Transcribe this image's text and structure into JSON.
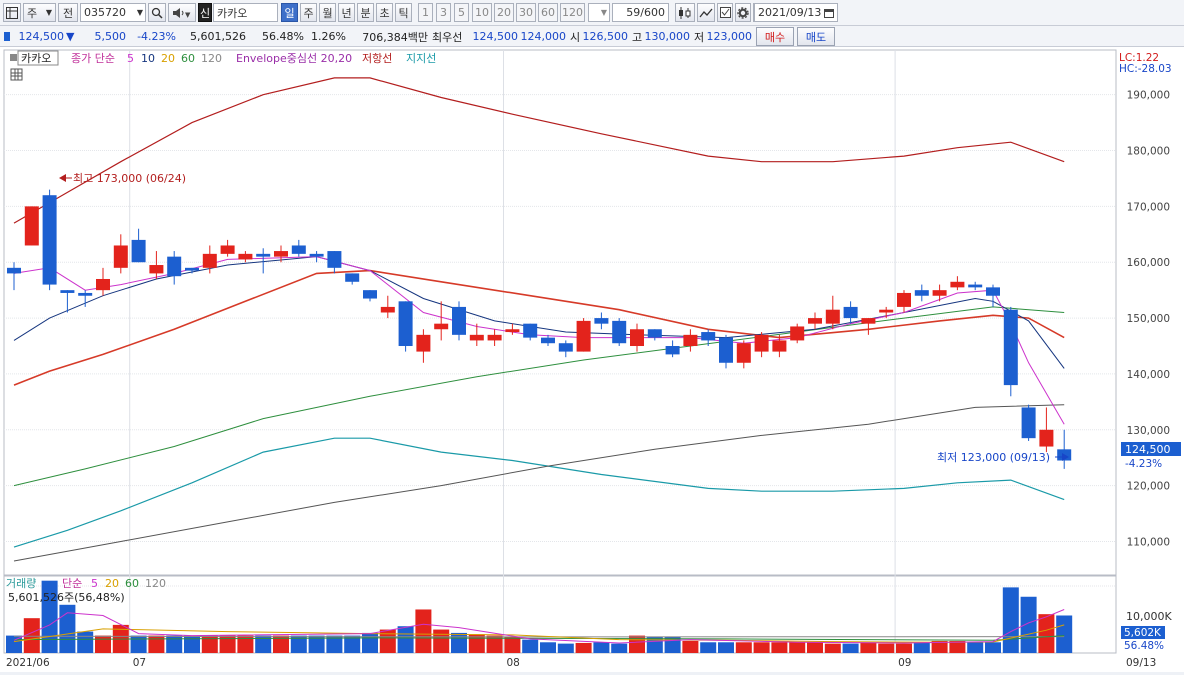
{
  "toolbar": {
    "market_label": "주",
    "jeon_label": "전",
    "code": "035720",
    "new_label": "신",
    "stock_name": "카카오",
    "periods": [
      "일",
      "주",
      "월",
      "년",
      "분",
      "초",
      "틱"
    ],
    "period_selected": "일",
    "numbers": [
      "1",
      "3",
      "5",
      "10",
      "20",
      "30",
      "60",
      "120"
    ],
    "count": "59/600",
    "date": "2021/09/13"
  },
  "quote": {
    "price": "124,500",
    "change_arrow": "▼",
    "change": "5,500",
    "change_pct": "-4.23%",
    "volume": "5,601,526",
    "volume_ratio": "56.48%",
    "turnover_ratio": "1.26%",
    "amount": "706,384백만",
    "best_label": "최우선",
    "best_ask": "124,500",
    "best_bid": "124,000",
    "open_label": "시",
    "open": "126,500",
    "high_label": "고",
    "high": "130,000",
    "low_label": "저",
    "low": "123,000",
    "buy_label": "매수",
    "sell_label": "매도"
  },
  "legend": {
    "stock_tag": "카카오",
    "ma_label": "종가 단순",
    "ma_periods": [
      "5",
      "10",
      "20",
      "60",
      "120"
    ],
    "envelope": "Envelope중심선 20,20",
    "resistance": "저항선",
    "support": "지지선",
    "lc": "LC:1.22",
    "hc": "HC:-28.03"
  },
  "annotations": {
    "max_label": "최고 173,000 (06/24)",
    "min_label": "최저 123,000 (09/13)",
    "last_price": "124,500",
    "last_pct": "-4.23%"
  },
  "volume_panel": {
    "label": "거래량",
    "ma_label": "단순",
    "ma_periods": [
      "5",
      "20",
      "60",
      "120"
    ],
    "current": "5,601,526주(56,48%)",
    "axis_label": "10,000K",
    "last_label": "5,602K",
    "last_pct": "56.48%"
  },
  "colors": {
    "up": "#e3231c",
    "down": "#1c5fd0",
    "ma5": "#cc33cc",
    "ma10": "#15357f",
    "ma20": "#d63a28",
    "ma60": "#2e8f3e",
    "ma120": "#555555",
    "env_upper": "#b31e1e",
    "env_lower": "#1a9aa8"
  },
  "chart_data": {
    "type": "candlestick",
    "y_ticks": [
      110000,
      120000,
      130000,
      140000,
      150000,
      160000,
      170000,
      180000,
      190000
    ],
    "ylim": [
      104000,
      198000
    ],
    "x_labels": [
      "2021/06",
      "07",
      "08",
      "09",
      "09/13"
    ],
    "candles": [
      {
        "o": 159000,
        "h": 160000,
        "l": 155000,
        "c": 158000
      },
      {
        "o": 163000,
        "h": 170000,
        "l": 163000,
        "c": 170000
      },
      {
        "o": 172000,
        "h": 173000,
        "l": 155000,
        "c": 156000
      },
      {
        "o": 155000,
        "h": 155000,
        "l": 151000,
        "c": 154500
      },
      {
        "o": 154500,
        "h": 155000,
        "l": 152000,
        "c": 154000
      },
      {
        "o": 155000,
        "h": 159000,
        "l": 154000,
        "c": 157000
      },
      {
        "o": 159000,
        "h": 165000,
        "l": 158000,
        "c": 163000
      },
      {
        "o": 164000,
        "h": 166000,
        "l": 160000,
        "c": 160000
      },
      {
        "o": 158000,
        "h": 162000,
        "l": 157000,
        "c": 159500
      },
      {
        "o": 161000,
        "h": 162000,
        "l": 156000,
        "c": 157500
      },
      {
        "o": 159000,
        "h": 159000,
        "l": 158000,
        "c": 158500
      },
      {
        "o": 159000,
        "h": 163000,
        "l": 158000,
        "c": 161500
      },
      {
        "o": 161500,
        "h": 164000,
        "l": 161000,
        "c": 163000
      },
      {
        "o": 160500,
        "h": 162000,
        "l": 160000,
        "c": 161500
      },
      {
        "o": 161500,
        "h": 162500,
        "l": 158000,
        "c": 161000
      },
      {
        "o": 161000,
        "h": 163000,
        "l": 160000,
        "c": 162000
      },
      {
        "o": 163000,
        "h": 164000,
        "l": 161000,
        "c": 161500
      },
      {
        "o": 161500,
        "h": 162000,
        "l": 160000,
        "c": 161000
      },
      {
        "o": 162000,
        "h": 162000,
        "l": 158000,
        "c": 159000
      },
      {
        "o": 158000,
        "h": 158000,
        "l": 156000,
        "c": 156500
      },
      {
        "o": 155000,
        "h": 155000,
        "l": 153000,
        "c": 153500
      },
      {
        "o": 151000,
        "h": 154000,
        "l": 150000,
        "c": 152000
      },
      {
        "o": 153000,
        "h": 153000,
        "l": 144000,
        "c": 145000
      },
      {
        "o": 144000,
        "h": 148000,
        "l": 142000,
        "c": 147000
      },
      {
        "o": 148000,
        "h": 153000,
        "l": 146000,
        "c": 149000
      },
      {
        "o": 152000,
        "h": 153000,
        "l": 146000,
        "c": 147000
      },
      {
        "o": 146000,
        "h": 149000,
        "l": 145000,
        "c": 147000
      },
      {
        "o": 146000,
        "h": 148000,
        "l": 145000,
        "c": 147000
      },
      {
        "o": 147500,
        "h": 149000,
        "l": 147000,
        "c": 148000
      },
      {
        "o": 149000,
        "h": 149000,
        "l": 146000,
        "c": 146500
      },
      {
        "o": 146500,
        "h": 147000,
        "l": 145000,
        "c": 145500
      },
      {
        "o": 145500,
        "h": 146000,
        "l": 143000,
        "c": 144000
      },
      {
        "o": 144000,
        "h": 150000,
        "l": 144000,
        "c": 149500
      },
      {
        "o": 150000,
        "h": 151000,
        "l": 148000,
        "c": 149000
      },
      {
        "o": 149500,
        "h": 150000,
        "l": 145000,
        "c": 145500
      },
      {
        "o": 145000,
        "h": 149000,
        "l": 144000,
        "c": 148000
      },
      {
        "o": 148000,
        "h": 148000,
        "l": 146000,
        "c": 146500
      },
      {
        "o": 145000,
        "h": 146000,
        "l": 143000,
        "c": 143500
      },
      {
        "o": 145000,
        "h": 148000,
        "l": 144000,
        "c": 147000
      },
      {
        "o": 147500,
        "h": 148000,
        "l": 145000,
        "c": 146000
      },
      {
        "o": 146500,
        "h": 147000,
        "l": 141000,
        "c": 142000
      },
      {
        "o": 142000,
        "h": 146000,
        "l": 141000,
        "c": 145500
      },
      {
        "o": 144000,
        "h": 147500,
        "l": 143000,
        "c": 147000
      },
      {
        "o": 144000,
        "h": 147000,
        "l": 143000,
        "c": 146000
      },
      {
        "o": 146000,
        "h": 149000,
        "l": 145500,
        "c": 148500
      },
      {
        "o": 149000,
        "h": 151000,
        "l": 148000,
        "c": 150000
      },
      {
        "o": 149000,
        "h": 154000,
        "l": 148000,
        "c": 151500
      },
      {
        "o": 152000,
        "h": 153000,
        "l": 149000,
        "c": 150000
      },
      {
        "o": 149000,
        "h": 150000,
        "l": 147000,
        "c": 150000
      },
      {
        "o": 151000,
        "h": 152000,
        "l": 150000,
        "c": 151500
      },
      {
        "o": 152000,
        "h": 155000,
        "l": 151000,
        "c": 154500
      },
      {
        "o": 155000,
        "h": 156000,
        "l": 153000,
        "c": 154000
      },
      {
        "o": 154000,
        "h": 156000,
        "l": 153000,
        "c": 155000
      },
      {
        "o": 155500,
        "h": 157500,
        "l": 155000,
        "c": 156500
      },
      {
        "o": 156000,
        "h": 156500,
        "l": 155000,
        "c": 155500
      },
      {
        "o": 155500,
        "h": 156000,
        "l": 152000,
        "c": 154000
      },
      {
        "o": 151500,
        "h": 152000,
        "l": 136000,
        "c": 138000
      },
      {
        "o": 134000,
        "h": 134500,
        "l": 128000,
        "c": 128500
      },
      {
        "o": 127000,
        "h": 134000,
        "l": 126000,
        "c": 130000
      },
      {
        "o": 126500,
        "h": 130000,
        "l": 123000,
        "c": 124500
      }
    ],
    "ma5": [
      [
        0,
        158000
      ],
      [
        2,
        159000
      ],
      [
        4,
        155000
      ],
      [
        6,
        156000
      ],
      [
        9,
        158000
      ],
      [
        12,
        160500
      ],
      [
        17,
        161000
      ],
      [
        20,
        158500
      ],
      [
        23,
        151000
      ],
      [
        26,
        148500
      ],
      [
        29,
        147000
      ],
      [
        32,
        146500
      ],
      [
        35,
        146500
      ],
      [
        38,
        146500
      ],
      [
        41,
        145500
      ],
      [
        44,
        146500
      ],
      [
        47,
        149000
      ],
      [
        50,
        151000
      ],
      [
        53,
        154500
      ],
      [
        55,
        155000
      ],
      [
        56,
        149000
      ],
      [
        57,
        142000
      ],
      [
        58,
        136500
      ],
      [
        59,
        131000
      ]
    ],
    "ma10": [
      [
        0,
        146000
      ],
      [
        2,
        150000
      ],
      [
        5,
        154000
      ],
      [
        8,
        157000
      ],
      [
        12,
        159500
      ],
      [
        17,
        161000
      ],
      [
        20,
        158500
      ],
      [
        23,
        153500
      ],
      [
        27,
        149500
      ],
      [
        31,
        147500
      ],
      [
        35,
        147000
      ],
      [
        40,
        146500
      ],
      [
        45,
        148000
      ],
      [
        50,
        151000
      ],
      [
        54,
        153500
      ],
      [
        55,
        153000
      ],
      [
        57,
        149500
      ],
      [
        59,
        141000
      ]
    ],
    "ma20": [
      [
        0,
        138000
      ],
      [
        2,
        140500
      ],
      [
        5,
        143500
      ],
      [
        9,
        148000
      ],
      [
        13,
        153000
      ],
      [
        17,
        158000
      ],
      [
        20,
        158500
      ],
      [
        24,
        156500
      ],
      [
        29,
        154000
      ],
      [
        34,
        151500
      ],
      [
        39,
        148000
      ],
      [
        43,
        146500
      ],
      [
        48,
        148000
      ],
      [
        52,
        149500
      ],
      [
        55,
        150500
      ],
      [
        57,
        150000
      ],
      [
        59,
        146500
      ]
    ],
    "ma60": [
      [
        0,
        120000
      ],
      [
        4,
        123000
      ],
      [
        9,
        127000
      ],
      [
        14,
        132000
      ],
      [
        20,
        136000
      ],
      [
        26,
        139500
      ],
      [
        32,
        142500
      ],
      [
        38,
        145000
      ],
      [
        44,
        147500
      ],
      [
        50,
        150000
      ],
      [
        55,
        152000
      ],
      [
        59,
        151000
      ]
    ],
    "ma120": [
      [
        0,
        106500
      ],
      [
        6,
        110000
      ],
      [
        12,
        113500
      ],
      [
        18,
        117000
      ],
      [
        24,
        120000
      ],
      [
        30,
        123500
      ],
      [
        36,
        126500
      ],
      [
        42,
        129000
      ],
      [
        48,
        131000
      ],
      [
        54,
        134000
      ],
      [
        59,
        134500
      ]
    ],
    "env_upper": [
      [
        0,
        167000
      ],
      [
        3,
        172500
      ],
      [
        6,
        178000
      ],
      [
        10,
        185000
      ],
      [
        14,
        190000
      ],
      [
        18,
        193000
      ],
      [
        20,
        193000
      ],
      [
        24,
        189500
      ],
      [
        28,
        186500
      ],
      [
        33,
        183000
      ],
      [
        39,
        179000
      ],
      [
        42,
        178000
      ],
      [
        46,
        178000
      ],
      [
        50,
        179000
      ],
      [
        53,
        180500
      ],
      [
        56,
        181500
      ],
      [
        59,
        178000
      ]
    ],
    "env_lower": [
      [
        0,
        109000
      ],
      [
        3,
        112000
      ],
      [
        6,
        115500
      ],
      [
        10,
        120500
      ],
      [
        14,
        126000
      ],
      [
        18,
        128500
      ],
      [
        20,
        128500
      ],
      [
        24,
        126000
      ],
      [
        28,
        124500
      ],
      [
        33,
        122000
      ],
      [
        39,
        119500
      ],
      [
        42,
        119000
      ],
      [
        46,
        119000
      ],
      [
        50,
        119500
      ],
      [
        53,
        120500
      ],
      [
        56,
        121000
      ],
      [
        59,
        117500
      ]
    ],
    "volume": [
      2600,
      5200,
      10800,
      7200,
      3200,
      2600,
      4200,
      2600,
      2600,
      2600,
      2600,
      2600,
      2600,
      2600,
      2600,
      2600,
      2600,
      2600,
      2600,
      2600,
      3000,
      3500,
      4000,
      6500,
      3500,
      3000,
      2800,
      2600,
      2400,
      2000,
      1600,
      1400,
      1500,
      1600,
      1400,
      2600,
      2400,
      2400,
      1800,
      1600,
      1600,
      1600,
      1600,
      1600,
      1600,
      1600,
      1400,
      1400,
      1600,
      1400,
      1400,
      1600,
      1800,
      1800,
      1600,
      1600,
      9800,
      8400,
      5800,
      5602
    ],
    "volume_ylim": [
      0,
      11500
    ],
    "volume_ticks": [
      10000
    ],
    "volume_ma5": [
      [
        0,
        1900
      ],
      [
        2,
        4200
      ],
      [
        3,
        6000
      ],
      [
        5,
        5600
      ],
      [
        7,
        2900
      ],
      [
        10,
        2600
      ],
      [
        20,
        2900
      ],
      [
        23,
        4300
      ],
      [
        25,
        3800
      ],
      [
        29,
        2100
      ],
      [
        34,
        1500
      ],
      [
        38,
        2000
      ],
      [
        44,
        1600
      ],
      [
        50,
        1500
      ],
      [
        55,
        1700
      ],
      [
        56,
        3200
      ],
      [
        57,
        4500
      ],
      [
        58,
        5400
      ],
      [
        59,
        6500
      ]
    ],
    "volume_ma20": [
      [
        0,
        1700
      ],
      [
        5,
        3600
      ],
      [
        12,
        3200
      ],
      [
        20,
        2900
      ],
      [
        28,
        2700
      ],
      [
        34,
        2000
      ],
      [
        40,
        1900
      ],
      [
        46,
        1700
      ],
      [
        52,
        1600
      ],
      [
        55,
        1650
      ],
      [
        58,
        3400
      ],
      [
        59,
        4200
      ]
    ],
    "volume_ma60": [
      [
        0,
        2000
      ],
      [
        20,
        2250
      ],
      [
        40,
        2100
      ],
      [
        55,
        1900
      ],
      [
        59,
        2600
      ]
    ],
    "volume_ma120": [
      [
        0,
        2500
      ],
      [
        30,
        2400
      ],
      [
        59,
        2450
      ]
    ]
  }
}
